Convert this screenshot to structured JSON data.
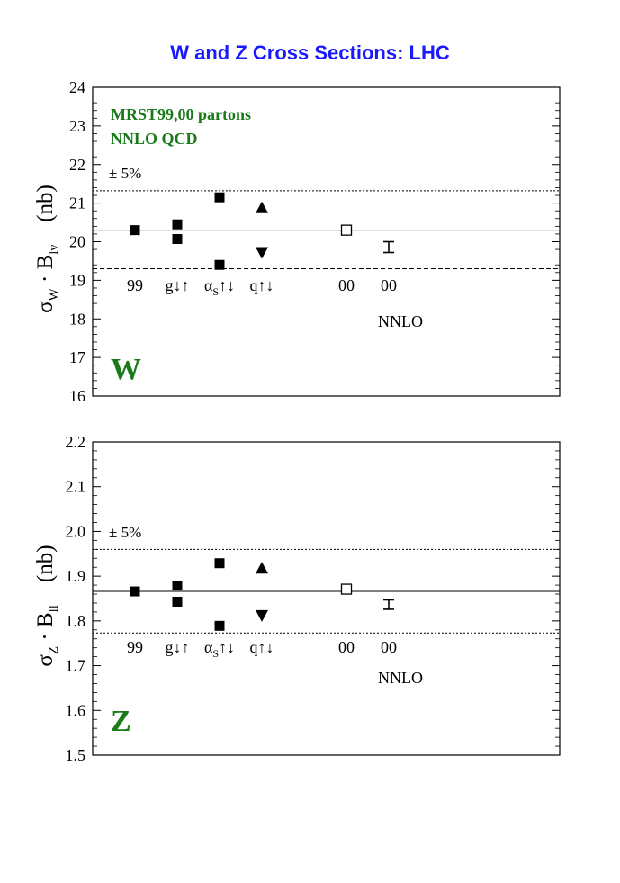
{
  "title": "W and Z Cross Sections: LHC",
  "colors": {
    "title": "#1a1aff",
    "annotation": "#1a7a1a",
    "ink": "#000000"
  },
  "chart_data": [
    {
      "id": "W",
      "type": "scatter",
      "panel_label": "W",
      "annotations": [
        "MRST99,00 partons",
        "NNLO QCD"
      ],
      "band_label": "± 5%",
      "ylabel": {
        "main": "σ",
        "main_sub": "W",
        "mid": " · B",
        "mid_sub": "lν",
        "unit": "(nb)"
      },
      "ylim": [
        16,
        24
      ],
      "yticks": [
        "16",
        "17",
        "18",
        "19",
        "20",
        "21",
        "22",
        "23",
        "24"
      ],
      "reference": 20.3,
      "band": [
        19.3,
        21.32
      ],
      "categories": [
        {
          "label": "99",
          "sub": "",
          "rest": ""
        },
        {
          "label": "g↓↑",
          "sub": "",
          "rest": ""
        },
        {
          "label": "α",
          "sub": "S",
          "rest": "↑↓"
        },
        {
          "label": "q↑↓",
          "sub": "",
          "rest": ""
        },
        {
          "label": "00",
          "sub": "",
          "rest": ""
        },
        {
          "label": "00",
          "sub": "",
          "rest": "",
          "label2": "NNLO"
        }
      ],
      "points": [
        {
          "cat": 0,
          "y": 20.3,
          "marker": "square"
        },
        {
          "cat": 1,
          "y": 20.45,
          "marker": "square"
        },
        {
          "cat": 1,
          "y": 20.07,
          "marker": "square"
        },
        {
          "cat": 2,
          "y": 21.15,
          "marker": "square"
        },
        {
          "cat": 2,
          "y": 19.4,
          "marker": "square"
        },
        {
          "cat": 3,
          "y": 20.88,
          "marker": "triangle-up"
        },
        {
          "cat": 3,
          "y": 19.72,
          "marker": "triangle-down"
        },
        {
          "cat": 4,
          "y": 20.3,
          "marker": "open-square"
        }
      ],
      "errorbars": [
        {
          "cat": 5,
          "low": 19.72,
          "high": 20.0
        }
      ]
    },
    {
      "id": "Z",
      "type": "scatter",
      "panel_label": "Z",
      "annotations": [],
      "band_label": "± 5%",
      "ylabel": {
        "main": "σ",
        "main_sub": "Z",
        "mid": " · B",
        "mid_sub": "ll",
        "unit": "(nb)"
      },
      "ylim": [
        1.5,
        2.2
      ],
      "yticks": [
        "1.5",
        "1.6",
        "1.7",
        "1.8",
        "1.9",
        "2.0",
        "2.1",
        "2.2"
      ],
      "reference": 1.866,
      "band": [
        1.773,
        1.96
      ],
      "categories": [
        {
          "label": "99",
          "sub": "",
          "rest": ""
        },
        {
          "label": "g↓↑",
          "sub": "",
          "rest": ""
        },
        {
          "label": "α",
          "sub": "S",
          "rest": "↑↓"
        },
        {
          "label": "q↑↓",
          "sub": "",
          "rest": ""
        },
        {
          "label": "00",
          "sub": "",
          "rest": ""
        },
        {
          "label": "00",
          "sub": "",
          "rest": "",
          "label2": "NNLO"
        }
      ],
      "points": [
        {
          "cat": 0,
          "y": 1.866,
          "marker": "square"
        },
        {
          "cat": 1,
          "y": 1.879,
          "marker": "square"
        },
        {
          "cat": 1,
          "y": 1.843,
          "marker": "square"
        },
        {
          "cat": 2,
          "y": 1.929,
          "marker": "square"
        },
        {
          "cat": 2,
          "y": 1.789,
          "marker": "square"
        },
        {
          "cat": 3,
          "y": 1.918,
          "marker": "triangle-up"
        },
        {
          "cat": 3,
          "y": 1.812,
          "marker": "triangle-down"
        },
        {
          "cat": 4,
          "y": 1.871,
          "marker": "open-square"
        }
      ],
      "errorbars": [
        {
          "cat": 5,
          "low": 1.826,
          "high": 1.847
        }
      ]
    }
  ]
}
